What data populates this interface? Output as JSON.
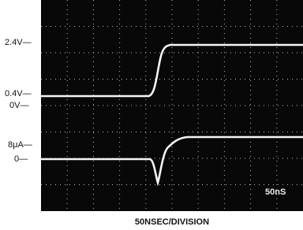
{
  "axis_labels": [
    {
      "text": "2.4V—"
    },
    {
      "text": "0.4V—"
    },
    {
      "text": "0V—"
    },
    {
      "text": "8μA—"
    },
    {
      "text": "0—"
    }
  ],
  "screen_text": "50nS",
  "caption": "50NSEC/DIVISION"
}
